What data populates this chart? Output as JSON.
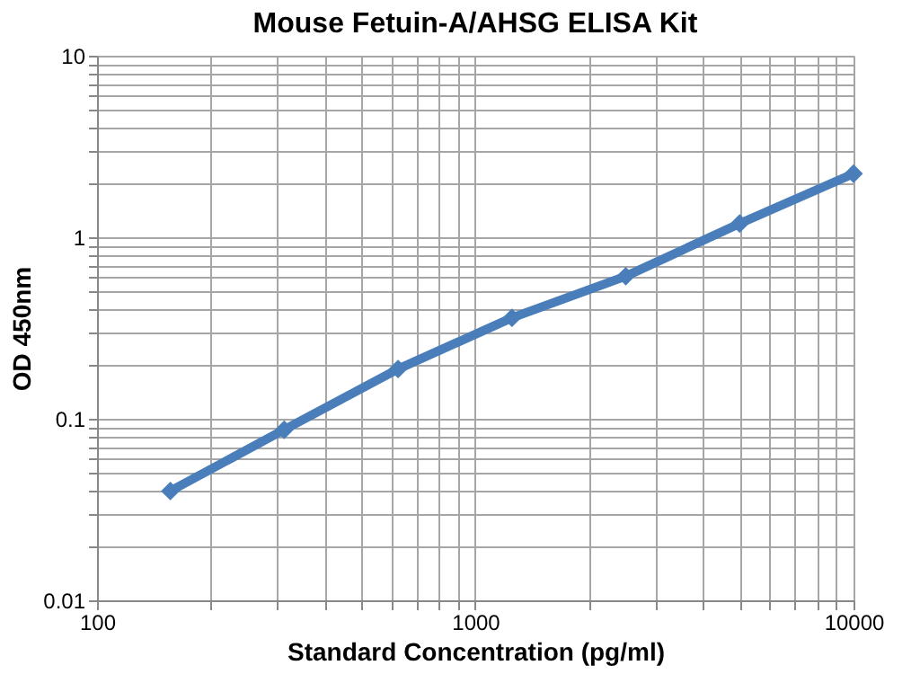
{
  "chart_data": {
    "type": "line",
    "title": "Mouse Fetuin-A/AHSG ELISA Kit",
    "xlabel": "Standard Concentration (pg/ml)",
    "ylabel": "OD 450nm",
    "x": [
      156.25,
      312.5,
      625,
      1250,
      2500,
      5000,
      10000
    ],
    "series": [
      {
        "color": "#4a7ebb",
        "values": [
          0.04,
          0.087,
          0.188,
          0.36,
          0.61,
          1.19,
          2.24
        ]
      }
    ],
    "log": "xy",
    "xlim": [
      100,
      10000
    ],
    "ylim": [
      0.01,
      10
    ],
    "xticks": [
      100,
      {
        "value": 200,
        "label": null
      },
      {
        "value": 300,
        "label": null
      },
      {
        "value": 400,
        "label": null
      },
      {
        "value": 500,
        "label": null
      },
      {
        "value": 600,
        "label": null
      },
      {
        "value": 700,
        "label": null
      },
      {
        "value": 800,
        "label": null
      },
      {
        "value": 900,
        "label": null
      },
      1000,
      {
        "value": 2000,
        "label": null
      },
      {
        "value": 3000,
        "label": null
      },
      {
        "value": 4000,
        "label": null
      },
      {
        "value": 5000,
        "label": null
      },
      {
        "value": 6000,
        "label": null
      },
      {
        "value": 7000,
        "label": null
      },
      {
        "value": 8000,
        "label": null
      },
      {
        "value": 9000,
        "label": null
      },
      10000
    ],
    "yticks": [
      0.01,
      {
        "value": 0.02,
        "label": null
      },
      {
        "value": 0.03,
        "label": null
      },
      {
        "value": 0.04,
        "label": null
      },
      {
        "value": 0.05,
        "label": null
      },
      {
        "value": 0.06,
        "label": null
      },
      {
        "value": 0.07,
        "label": null
      },
      {
        "value": 0.08,
        "label": null
      },
      {
        "value": 0.09,
        "label": null
      },
      0.1,
      {
        "value": 0.2,
        "label": null
      },
      {
        "value": 0.3,
        "label": null
      },
      {
        "value": 0.4,
        "label": null
      },
      {
        "value": 0.5,
        "label": null
      },
      {
        "value": 0.6,
        "label": null
      },
      {
        "value": 0.7,
        "label": null
      },
      {
        "value": 0.8,
        "label": null
      },
      {
        "value": 0.9,
        "label": null
      },
      1,
      {
        "value": 2,
        "label": null
      },
      {
        "value": 3,
        "label": null
      },
      {
        "value": 4,
        "label": null
      },
      {
        "value": 5,
        "label": null
      },
      {
        "value": 6,
        "label": null
      },
      {
        "value": 7,
        "label": null
      },
      {
        "value": 8,
        "label": null
      },
      {
        "value": 9,
        "label": null
      },
      10
    ],
    "grid": true,
    "marker": "diamond",
    "line_style": "solid"
  }
}
